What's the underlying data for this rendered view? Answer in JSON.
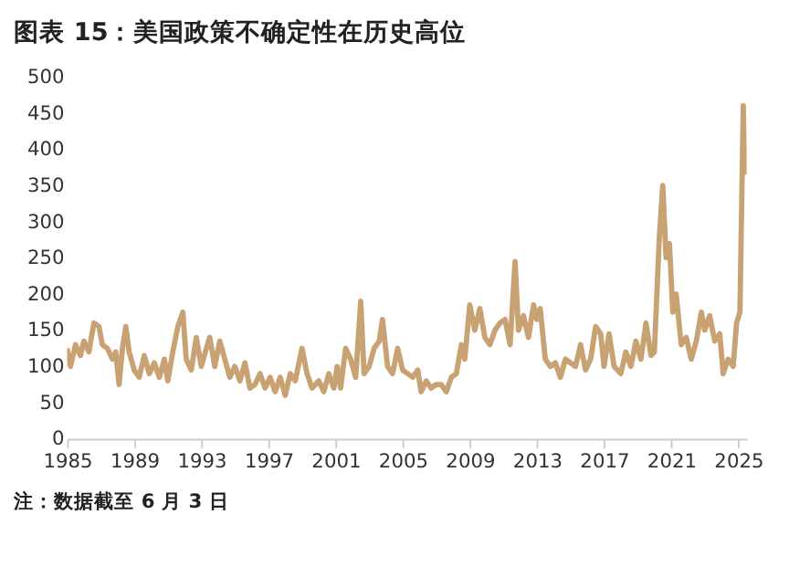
{
  "chart_data": {
    "type": "line",
    "title": "图表 15：美国政策不确定性在历史高位",
    "annotations": [
      "注：数据截至 6 月 3 日"
    ],
    "x": [
      1985.0,
      1985.2,
      1985.5,
      1985.8,
      1986.0,
      1986.3,
      1986.6,
      1986.9,
      1987.1,
      1987.4,
      1987.7,
      1987.9,
      1988.1,
      1988.3,
      1988.5,
      1988.7,
      1989.0,
      1989.3,
      1989.6,
      1989.9,
      1990.2,
      1990.5,
      1990.8,
      1991.0,
      1991.3,
      1991.6,
      1991.9,
      1992.1,
      1992.4,
      1992.7,
      1993.0,
      1993.3,
      1993.5,
      1993.8,
      1994.1,
      1994.4,
      1994.7,
      1995.0,
      1995.3,
      1995.6,
      1995.9,
      1996.2,
      1996.5,
      1996.8,
      1997.1,
      1997.4,
      1997.7,
      1998.0,
      1998.3,
      1998.6,
      1999.0,
      1999.3,
      1999.6,
      2000.0,
      2000.3,
      2000.6,
      2000.9,
      2001.1,
      2001.3,
      2001.6,
      2001.9,
      2002.2,
      2002.5,
      2002.7,
      2003.0,
      2003.3,
      2003.6,
      2003.8,
      2004.1,
      2004.4,
      2004.7,
      2005.0,
      2005.3,
      2005.6,
      2005.9,
      2006.1,
      2006.4,
      2006.7,
      2007.0,
      2007.3,
      2007.6,
      2007.9,
      2008.2,
      2008.5,
      2008.7,
      2009.0,
      2009.3,
      2009.6,
      2009.9,
      2010.2,
      2010.5,
      2010.8,
      2011.1,
      2011.4,
      2011.7,
      2011.9,
      2012.2,
      2012.5,
      2012.8,
      2013.0,
      2013.2,
      2013.5,
      2013.8,
      2014.1,
      2014.4,
      2014.7,
      2015.0,
      2015.3,
      2015.6,
      2015.9,
      2016.2,
      2016.5,
      2016.8,
      2017.0,
      2017.3,
      2017.6,
      2018.0,
      2018.3,
      2018.6,
      2018.9,
      2019.2,
      2019.5,
      2019.8,
      2020.0,
      2020.3,
      2020.5,
      2020.7,
      2020.9,
      2021.1,
      2021.3,
      2021.6,
      2021.9,
      2022.2,
      2022.5,
      2022.8,
      2023.0,
      2023.3,
      2023.6,
      2023.9,
      2024.1,
      2024.4,
      2024.7,
      2024.9,
      2025.1,
      2025.3,
      2025.4
    ],
    "series": [
      {
        "color": "#c8a273",
        "values": [
          125,
          100,
          130,
          115,
          135,
          120,
          160,
          155,
          130,
          125,
          110,
          120,
          75,
          125,
          155,
          120,
          95,
          85,
          115,
          90,
          105,
          85,
          110,
          80,
          120,
          155,
          175,
          110,
          95,
          140,
          100,
          125,
          140,
          100,
          135,
          110,
          85,
          100,
          80,
          105,
          70,
          75,
          90,
          70,
          85,
          65,
          85,
          60,
          90,
          80,
          125,
          90,
          70,
          80,
          65,
          90,
          70,
          100,
          70,
          125,
          110,
          85,
          190,
          90,
          100,
          125,
          135,
          165,
          100,
          90,
          125,
          95,
          90,
          85,
          95,
          65,
          80,
          70,
          75,
          75,
          65,
          85,
          90,
          130,
          110,
          185,
          150,
          180,
          140,
          130,
          150,
          160,
          165,
          130,
          245,
          150,
          170,
          140,
          185,
          165,
          180,
          110,
          100,
          105,
          85,
          110,
          105,
          100,
          130,
          95,
          110,
          155,
          145,
          100,
          145,
          100,
          90,
          120,
          100,
          135,
          110,
          160,
          115,
          120,
          280,
          350,
          250,
          270,
          175,
          200,
          130,
          140,
          110,
          135,
          175,
          150,
          170,
          135,
          145,
          90,
          110,
          100,
          160,
          175,
          460,
          365
        ]
      }
    ],
    "xlim": [
      1985,
      2025.5
    ],
    "xticks": [
      1985,
      1989,
      1993,
      1997,
      2001,
      2005,
      2009,
      2013,
      2017,
      2021,
      2025
    ],
    "ylim": [
      0,
      500
    ],
    "yticks": [
      0,
      50,
      100,
      150,
      200,
      250,
      300,
      350,
      400,
      450,
      500
    ],
    "grid": false,
    "legend": false
  }
}
